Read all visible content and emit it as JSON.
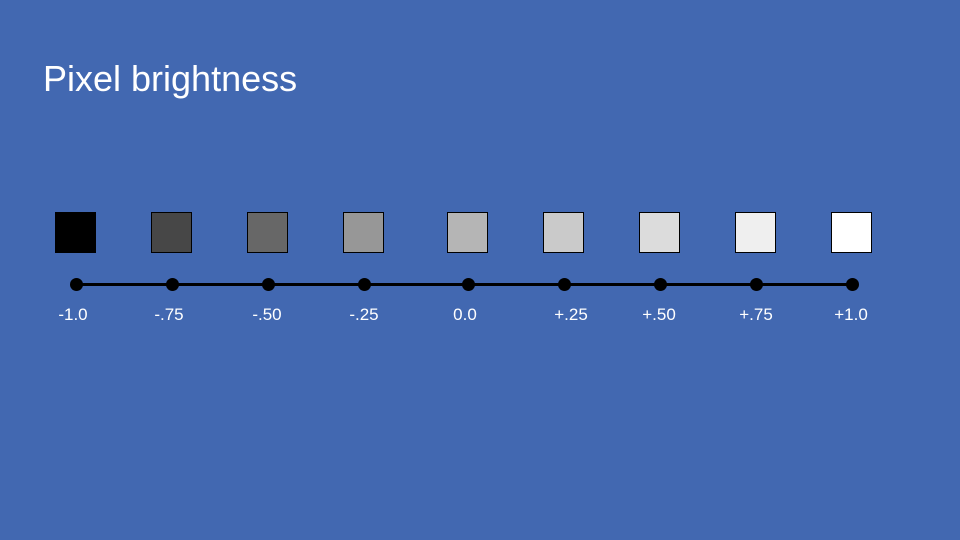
{
  "slide": {
    "title": "Pixel brightness"
  },
  "scale": {
    "steps": [
      {
        "label": "-1.0",
        "brightness": -1.0,
        "color": "#000000"
      },
      {
        "label": "-.75",
        "brightness": -0.75,
        "color": "#474747"
      },
      {
        "label": "-.50",
        "brightness": -0.5,
        "color": "#676767"
      },
      {
        "label": "-.25",
        "brightness": -0.25,
        "color": "#979797"
      },
      {
        "label": "0.0",
        "brightness": 0.0,
        "color": "#b5b5b5"
      },
      {
        "label": "+.25",
        "brightness": 0.25,
        "color": "#cacaca"
      },
      {
        "label": "+.50",
        "brightness": 0.5,
        "color": "#dcdcdc"
      },
      {
        "label": "+.75",
        "brightness": 0.75,
        "color": "#efefef"
      },
      {
        "label": "+1.0",
        "brightness": 1.0,
        "color": "#ffffff"
      }
    ],
    "axis_color": "#000000"
  },
  "colors": {
    "background": "#4268b1",
    "text": "#ffffff"
  }
}
